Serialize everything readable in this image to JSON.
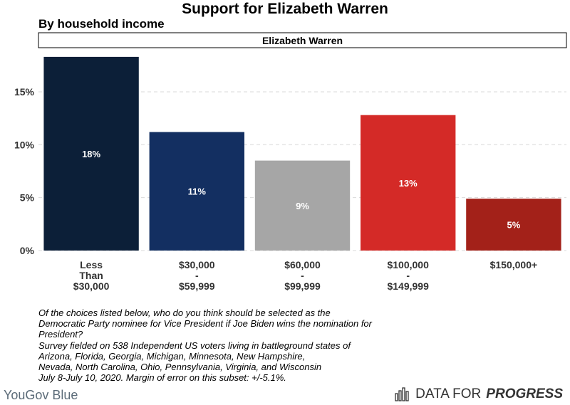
{
  "title": "Support for Elizabeth Warren",
  "subtitle": "By household income",
  "note_lines": [
    "Of the choices listed below, who do you think should be selected as the",
    "Democratic Party nominee for Vice President if Joe Biden wins the nomination for",
    "President?",
    "Survey fielded on 538 Independent US voters living in battleground states of",
    "Arizona, Florida, Georgia, Michigan, Minnesota, New Hampshire,",
    "Nevada, North Carolina, Ohio, Pennsylvania, Virginia, and Wisconsin",
    "July 8-July 10, 2020. Margin of error on this subset: +/-5.1%."
  ],
  "brand_left": "YouGov Blue",
  "brand_right": {
    "icon": "bar-chart-logo-icon",
    "word_1": "DATA FOR",
    "word_2": "PROGRESS"
  },
  "chart_data": {
    "type": "bar",
    "title": "Support for Elizabeth Warren",
    "subtitle": "By household income",
    "panel_label": "Elizabeth Warren",
    "categories": [
      [
        "Less",
        "Than",
        "$30,000"
      ],
      [
        "$30,000",
        "-",
        "$59,999"
      ],
      [
        "$60,000",
        "-",
        "$99,999"
      ],
      [
        "$100,000",
        "-",
        "$149,999"
      ],
      [
        "$150,000+"
      ]
    ],
    "values": [
      18.3,
      11.2,
      8.5,
      12.8,
      4.9
    ],
    "data_labels": [
      "18%",
      "11%",
      "9%",
      "13%",
      "5%"
    ],
    "colors": [
      "#0c1f38",
      "#132f61",
      "#a6a6a6",
      "#d42a27",
      "#a32119"
    ],
    "y_ticks": [
      0,
      5,
      10,
      15
    ],
    "y_tick_labels": [
      "0%",
      "5%",
      "10%",
      "15%"
    ],
    "ylim": [
      0,
      19.1
    ],
    "grid": true,
    "grid_color": "#d9d9d9"
  }
}
